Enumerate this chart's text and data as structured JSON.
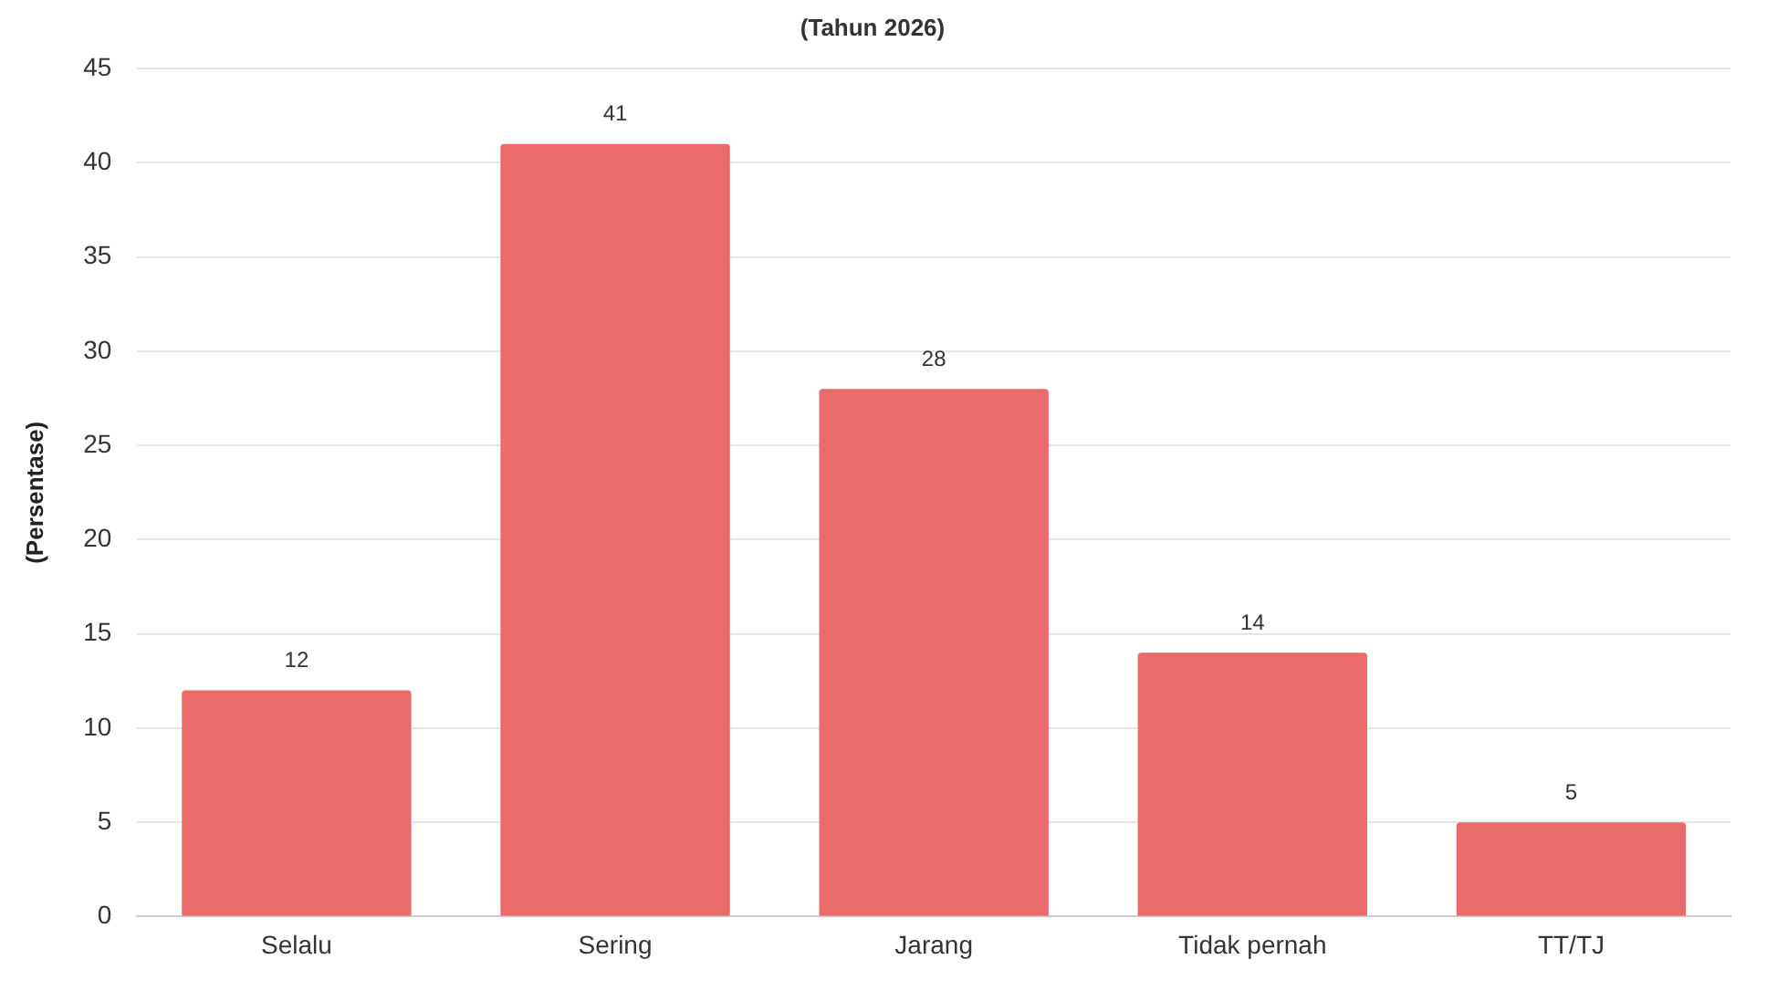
{
  "chart_data": {
    "type": "bar",
    "title": "(Tahun 2026)",
    "ylabel": "(Persentase)",
    "categories": [
      "Selalu",
      "Sering",
      "Jarang",
      "Tidak pernah",
      "TT/TJ"
    ],
    "values": [
      12,
      41,
      28,
      14,
      5
    ],
    "color": "#eb6a6a",
    "ylim": [
      0,
      45
    ],
    "yticks": [
      0,
      5,
      10,
      15,
      20,
      25,
      30,
      35,
      40,
      45
    ],
    "grid": "y",
    "data_labels": true,
    "legend": false
  }
}
